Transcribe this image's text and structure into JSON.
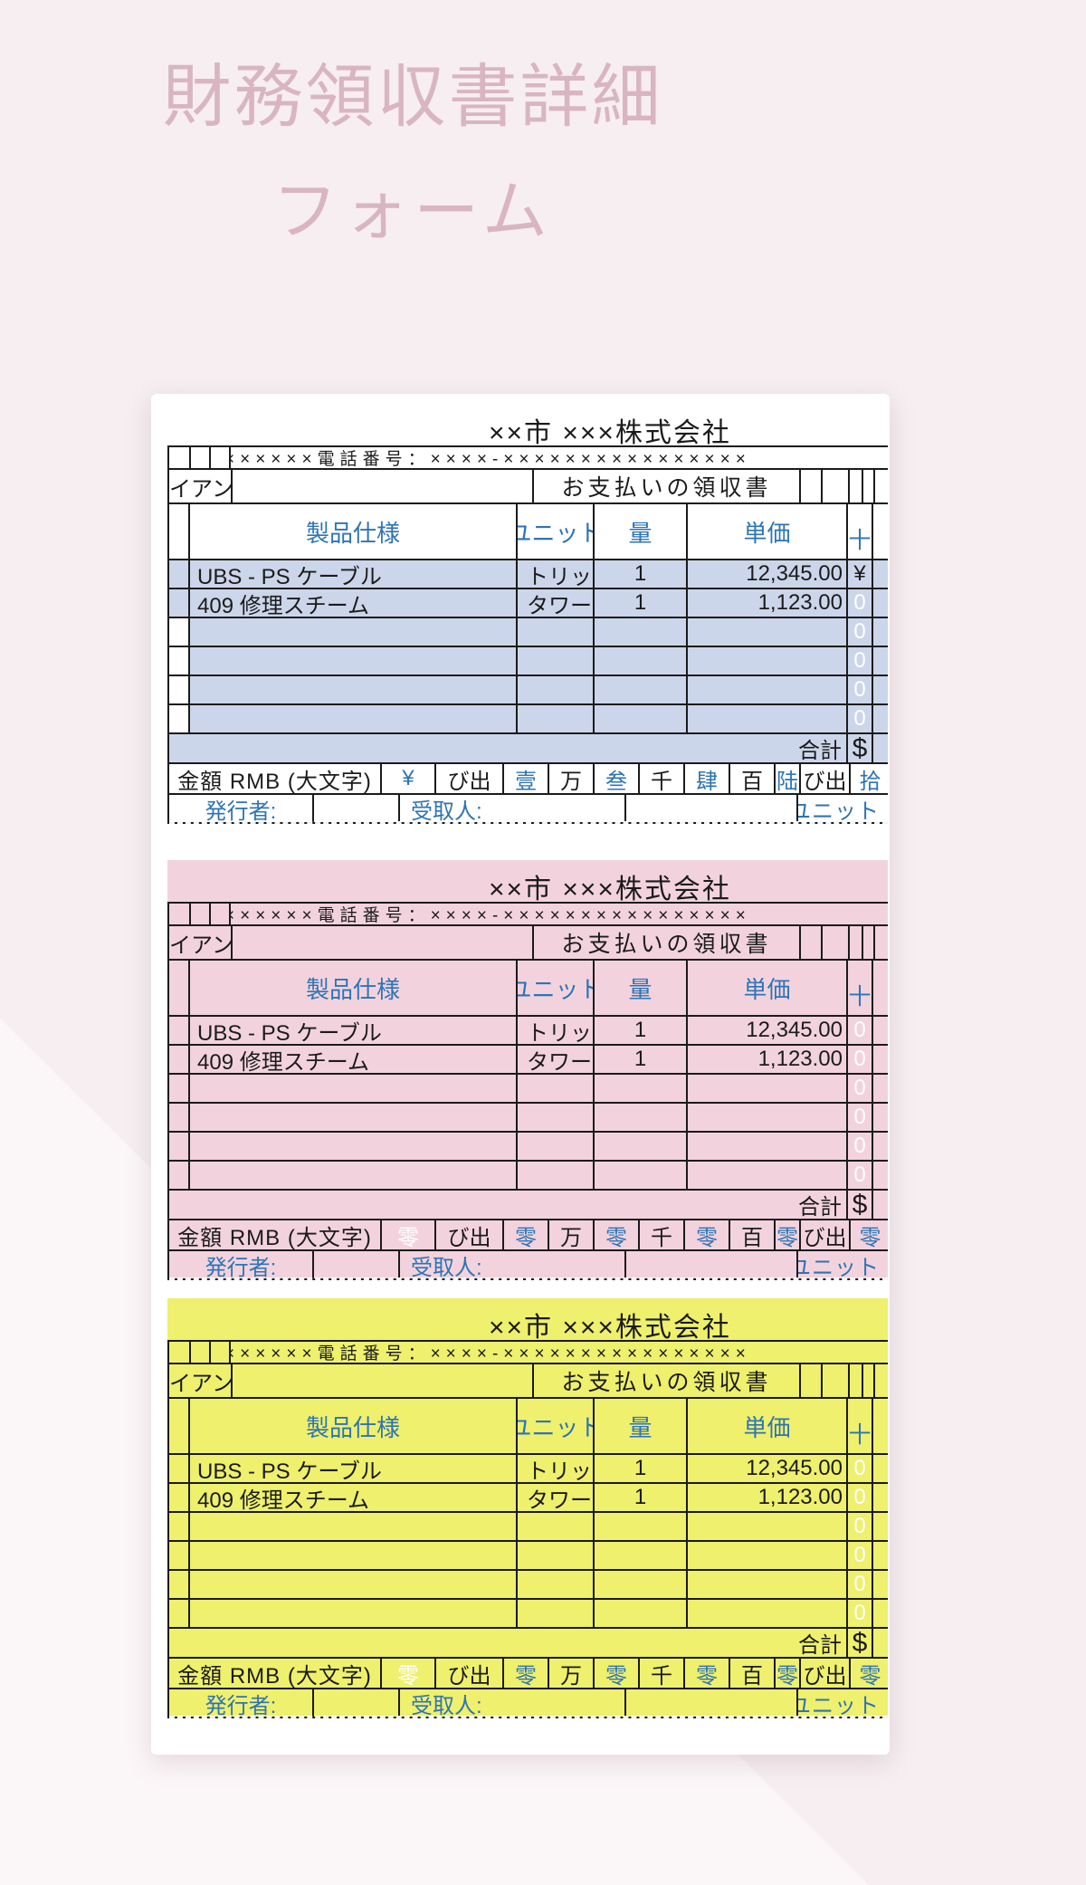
{
  "page": {
    "title_line1": "財務領収書詳細",
    "title_line2": "フォーム"
  },
  "colors": {
    "page_bg": "#f6eef1",
    "page_bg_light": "#fbf6f8",
    "title_text": "#d9b5c2",
    "card_bg": "#ffffff",
    "table_border": "#1b1b1b",
    "accent_blue_text": "#2e74b5",
    "fill_blue": "#ccd6ea",
    "fill_pink": "#f2d3dd",
    "fill_yellow": "#eef06e",
    "white_digit": "#ffffff"
  },
  "common": {
    "company": "××市 ×××株式会社",
    "phone_line": "××××××電話番号：××××-××××××××××××××××",
    "client_fragment": "イアン",
    "receipt_title": "お支払いの領収書",
    "headers": {
      "product": "製品仕様",
      "unit": "ユニット",
      "qty": "量",
      "price": "単価",
      "digit": "十"
    },
    "rows": [
      {
        "product": "UBS - PS ケーブル",
        "unit": "トリッ",
        "qty": "1",
        "price": "12,345.00"
      },
      {
        "product": "409 修理スチーム",
        "unit": "タワー",
        "qty": "1",
        "price": "1,123.00"
      }
    ],
    "total_label": "合計",
    "total_symbol": "$",
    "amount_label": "金額 RMB (大文字)",
    "issuer_label": "発行者:",
    "receiver_label": "受取人:",
    "unit_label": "ユニット"
  },
  "receipts": [
    {
      "variant": "blue",
      "side_digits": [
        {
          "t": "¥",
          "c": "black"
        },
        {
          "t": "0",
          "c": "white"
        },
        {
          "t": "0",
          "c": "white"
        },
        {
          "t": "0",
          "c": "white"
        },
        {
          "t": "0",
          "c": "white"
        },
        {
          "t": "0",
          "c": "white"
        }
      ],
      "amount_cells": [
        {
          "t": "¥",
          "c": "blue"
        },
        {
          "t": "び出",
          "c": "black"
        },
        {
          "t": "壹",
          "c": "blue"
        },
        {
          "t": "万",
          "c": "black"
        },
        {
          "t": "叁",
          "c": "blue"
        },
        {
          "t": "千",
          "c": "black"
        },
        {
          "t": "肆",
          "c": "blue"
        },
        {
          "t": "百",
          "c": "black"
        },
        {
          "t": "陆",
          "c": "blue"
        },
        {
          "t": "び出",
          "c": "black"
        },
        {
          "t": "拾",
          "c": "blue"
        }
      ]
    },
    {
      "variant": "pink",
      "side_digits": [
        {
          "t": "0",
          "c": "white"
        },
        {
          "t": "0",
          "c": "white"
        },
        {
          "t": "0",
          "c": "white"
        },
        {
          "t": "0",
          "c": "white"
        },
        {
          "t": "0",
          "c": "white"
        },
        {
          "t": "0",
          "c": "white"
        }
      ],
      "amount_cells": [
        {
          "t": "零",
          "c": "white"
        },
        {
          "t": "び出",
          "c": "black"
        },
        {
          "t": "零",
          "c": "blue"
        },
        {
          "t": "万",
          "c": "black"
        },
        {
          "t": "零",
          "c": "blue"
        },
        {
          "t": "千",
          "c": "black"
        },
        {
          "t": "零",
          "c": "blue"
        },
        {
          "t": "百",
          "c": "black"
        },
        {
          "t": "零",
          "c": "blue"
        },
        {
          "t": "び出",
          "c": "black"
        },
        {
          "t": "零",
          "c": "blue"
        }
      ]
    },
    {
      "variant": "yellow",
      "side_digits": [
        {
          "t": "0",
          "c": "white"
        },
        {
          "t": "0",
          "c": "white"
        },
        {
          "t": "0",
          "c": "white"
        },
        {
          "t": "0",
          "c": "white"
        },
        {
          "t": "0",
          "c": "white"
        },
        {
          "t": "0",
          "c": "white"
        }
      ],
      "amount_cells": [
        {
          "t": "零",
          "c": "white"
        },
        {
          "t": "び出",
          "c": "black"
        },
        {
          "t": "零",
          "c": "blue"
        },
        {
          "t": "万",
          "c": "black"
        },
        {
          "t": "零",
          "c": "blue"
        },
        {
          "t": "千",
          "c": "black"
        },
        {
          "t": "零",
          "c": "blue"
        },
        {
          "t": "百",
          "c": "black"
        },
        {
          "t": "零",
          "c": "blue"
        },
        {
          "t": "び出",
          "c": "black"
        },
        {
          "t": "零",
          "c": "blue"
        }
      ]
    }
  ]
}
